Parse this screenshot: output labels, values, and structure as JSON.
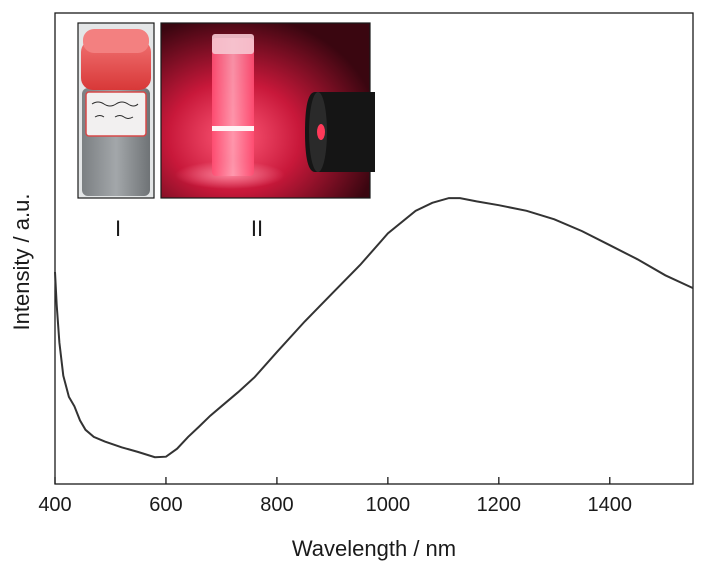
{
  "chart_data": {
    "type": "line",
    "title": "",
    "xlabel": "Wavelength / nm",
    "ylabel": "Intensity / a.u.",
    "xlim": [
      400,
      1550
    ],
    "xticks": [
      400,
      600,
      800,
      1000,
      1200,
      1400
    ],
    "ylim": [
      0,
      100
    ],
    "y_ticks_shown": false,
    "grid": false,
    "legend": "none",
    "series": [
      {
        "color": "#333333",
        "x": [
          400,
          403,
          408,
          415,
          425,
          435,
          445,
          455,
          470,
          490,
          520,
          550,
          580,
          600,
          620,
          640,
          660,
          680,
          700,
          730,
          760,
          800,
          850,
          900,
          950,
          1000,
          1050,
          1080,
          1110,
          1130,
          1160,
          1200,
          1250,
          1300,
          1350,
          1400,
          1450,
          1500,
          1550
        ],
        "y": [
          45,
          38,
          30,
          23,
          18.5,
          16.5,
          13.5,
          11.5,
          10,
          9,
          7.8,
          6.8,
          5.7,
          5.8,
          7.5,
          10,
          12.2,
          14.5,
          16.5,
          19.5,
          22.7,
          28,
          34.5,
          40.5,
          46.5,
          53.2,
          58,
          59.7,
          60.7,
          60.7,
          60,
          59.2,
          58,
          56.2,
          53.7,
          50.7,
          47.7,
          44.3,
          41.6
        ]
      }
    ],
    "insets": [
      {
        "label": "I",
        "description": "vial of grey powder with red cap",
        "handwriting": "SN200708 Gd 100"
      },
      {
        "label": "II",
        "description": "glowing red vial illuminated by laser"
      }
    ]
  }
}
